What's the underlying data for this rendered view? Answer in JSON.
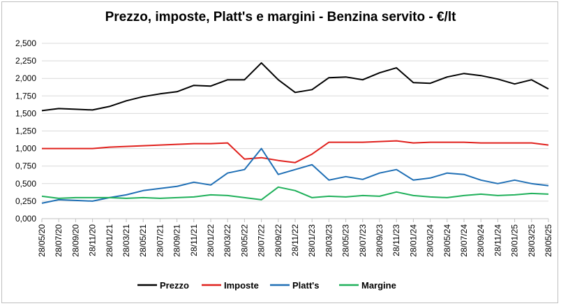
{
  "chart_data": {
    "type": "line",
    "title": "Prezzo, imposte, Platt's e margini - Benzina servito - €/lt",
    "xlabel": "",
    "ylabel": "",
    "ylim": [
      0,
      2.5
    ],
    "y_ticks": [
      "0,000",
      "0,250",
      "0,500",
      "0,750",
      "1,000",
      "1,250",
      "1,500",
      "1,750",
      "2,000",
      "2,250",
      "2,500"
    ],
    "categories": [
      "28/05/20",
      "28/07/20",
      "28/09/20",
      "28/11/20",
      "28/01/21",
      "28/03/21",
      "28/05/21",
      "28/07/21",
      "28/09/21",
      "28/11/21",
      "28/01/22",
      "28/03/22",
      "28/05/22",
      "28/07/22",
      "28/09/22",
      "28/11/22",
      "28/01/23",
      "28/03/23",
      "28/05/23",
      "28/07/23",
      "28/09/23",
      "28/11/23",
      "28/01/24",
      "28/03/24",
      "28/05/24",
      "28/07/24",
      "28/09/24",
      "28/11/24",
      "28/01/25",
      "28/03/25",
      "28/05/25"
    ],
    "grid": "horizontal",
    "legend_position": "bottom",
    "series": [
      {
        "name": "Prezzo",
        "color": "#000000",
        "values": [
          1.54,
          1.57,
          1.56,
          1.55,
          1.6,
          1.68,
          1.74,
          1.78,
          1.81,
          1.9,
          1.89,
          1.98,
          1.98,
          2.22,
          1.98,
          1.8,
          1.84,
          2.01,
          2.02,
          1.98,
          2.08,
          2.15,
          1.94,
          1.93,
          2.02,
          2.07,
          2.04,
          1.99,
          1.92,
          1.98,
          1.85
        ]
      },
      {
        "name": "Imposte",
        "color": "#e0201c",
        "values": [
          1.0,
          1.0,
          1.0,
          1.0,
          1.02,
          1.03,
          1.04,
          1.05,
          1.06,
          1.07,
          1.07,
          1.08,
          0.85,
          0.87,
          0.83,
          0.8,
          0.92,
          1.09,
          1.09,
          1.09,
          1.1,
          1.11,
          1.08,
          1.09,
          1.09,
          1.09,
          1.08,
          1.08,
          1.08,
          1.08,
          1.05
        ]
      },
      {
        "name": "Platt's",
        "color": "#1f6fb5",
        "values": [
          0.22,
          0.27,
          0.26,
          0.25,
          0.3,
          0.34,
          0.4,
          0.43,
          0.46,
          0.52,
          0.48,
          0.65,
          0.7,
          1.0,
          0.63,
          0.7,
          0.77,
          0.55,
          0.6,
          0.56,
          0.65,
          0.7,
          0.55,
          0.58,
          0.65,
          0.63,
          0.55,
          0.5,
          0.55,
          0.5,
          0.47
        ]
      },
      {
        "name": "Margine",
        "color": "#1fb05a",
        "values": [
          0.32,
          0.29,
          0.3,
          0.3,
          0.3,
          0.29,
          0.3,
          0.29,
          0.3,
          0.31,
          0.34,
          0.33,
          0.3,
          0.27,
          0.45,
          0.4,
          0.3,
          0.32,
          0.31,
          0.33,
          0.32,
          0.38,
          0.33,
          0.31,
          0.3,
          0.33,
          0.35,
          0.33,
          0.34,
          0.36,
          0.35
        ]
      }
    ]
  }
}
